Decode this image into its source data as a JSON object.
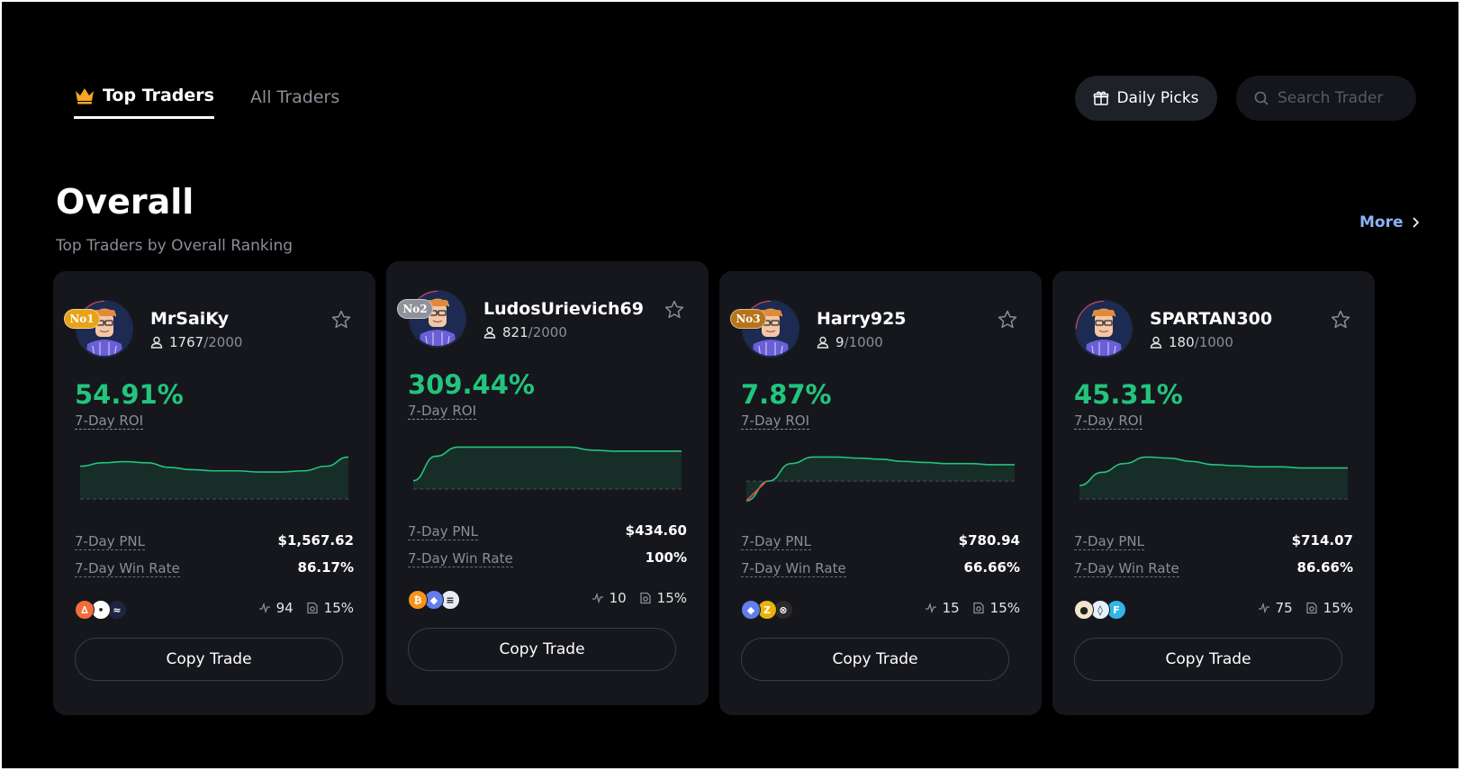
{
  "nav": {
    "tabs": [
      {
        "label": "Top Traders",
        "icon": "crown-icon",
        "active": true
      },
      {
        "label": "All Traders",
        "active": false
      }
    ],
    "daily_picks_label": "Daily Picks",
    "search_placeholder": "Search Trader"
  },
  "section": {
    "title": "Overall",
    "subtitle": "Top Traders by Overall Ranking",
    "more_label": "More"
  },
  "labels": {
    "roi": "7-Day ROI",
    "pnl": "7-Day PNL",
    "win_rate": "7-Day Win Rate",
    "copy_trade": "Copy Trade"
  },
  "colors": {
    "positive": "#23c47e",
    "negative": "#e5484d",
    "rank1": "#e8a317",
    "rank2": "#8f9299",
    "rank3": "#b8741a",
    "link": "#8ab4f8"
  },
  "traders": [
    {
      "name": "MrSaiKy",
      "rank_badge": "No1",
      "followers": "1767",
      "followers_max": "/2000",
      "roi": "54.91%",
      "pnl": "$1,567.62",
      "win_rate": "86.17%",
      "trades": "94",
      "profit_share": "15%",
      "coins": [
        "orange-coin-icon",
        "dots-coin-icon",
        "dark-coin-icon"
      ],
      "curve": [
        30,
        33,
        34,
        33,
        29,
        27,
        26,
        26,
        25,
        25,
        26,
        30,
        38
      ]
    },
    {
      "name": "LudosUrievich69",
      "rank_badge": "No2",
      "followers": "821",
      "followers_max": "/2000",
      "roi": "309.44%",
      "pnl": "$434.60",
      "win_rate": "100%",
      "trades": "10",
      "profit_share": "15%",
      "coins": [
        "bitcoin-icon",
        "ethereum-icon",
        "solana-icon"
      ],
      "curve": [
        10,
        34,
        43,
        43,
        43,
        43,
        43,
        43,
        40,
        39,
        39,
        39,
        39
      ]
    },
    {
      "name": "Harry925",
      "rank_badge": "No3",
      "followers": "9",
      "followers_max": "/1000",
      "roi": "7.87%",
      "pnl": "$780.94",
      "win_rate": "66.66%",
      "trades": "15",
      "profit_share": "15%",
      "coins": [
        "ethereum-icon",
        "zcash-icon",
        "cosmos-icon"
      ],
      "curve": [
        -18,
        0,
        16,
        22,
        22,
        21,
        20,
        18,
        17,
        16,
        16,
        15,
        15
      ]
    },
    {
      "name": "SPARTAN300",
      "rank_badge": "",
      "followers": "180",
      "followers_max": "/1000",
      "roi": "45.31%",
      "pnl": "$714.07",
      "win_rate": "86.66%",
      "trades": "75",
      "profit_share": "15%",
      "coins": [
        "polkadot-icon",
        "lido-icon",
        "fantom-icon"
      ],
      "curve": [
        14,
        26,
        34,
        40,
        39,
        36,
        33,
        32,
        31,
        31,
        30,
        30,
        30
      ]
    }
  ]
}
